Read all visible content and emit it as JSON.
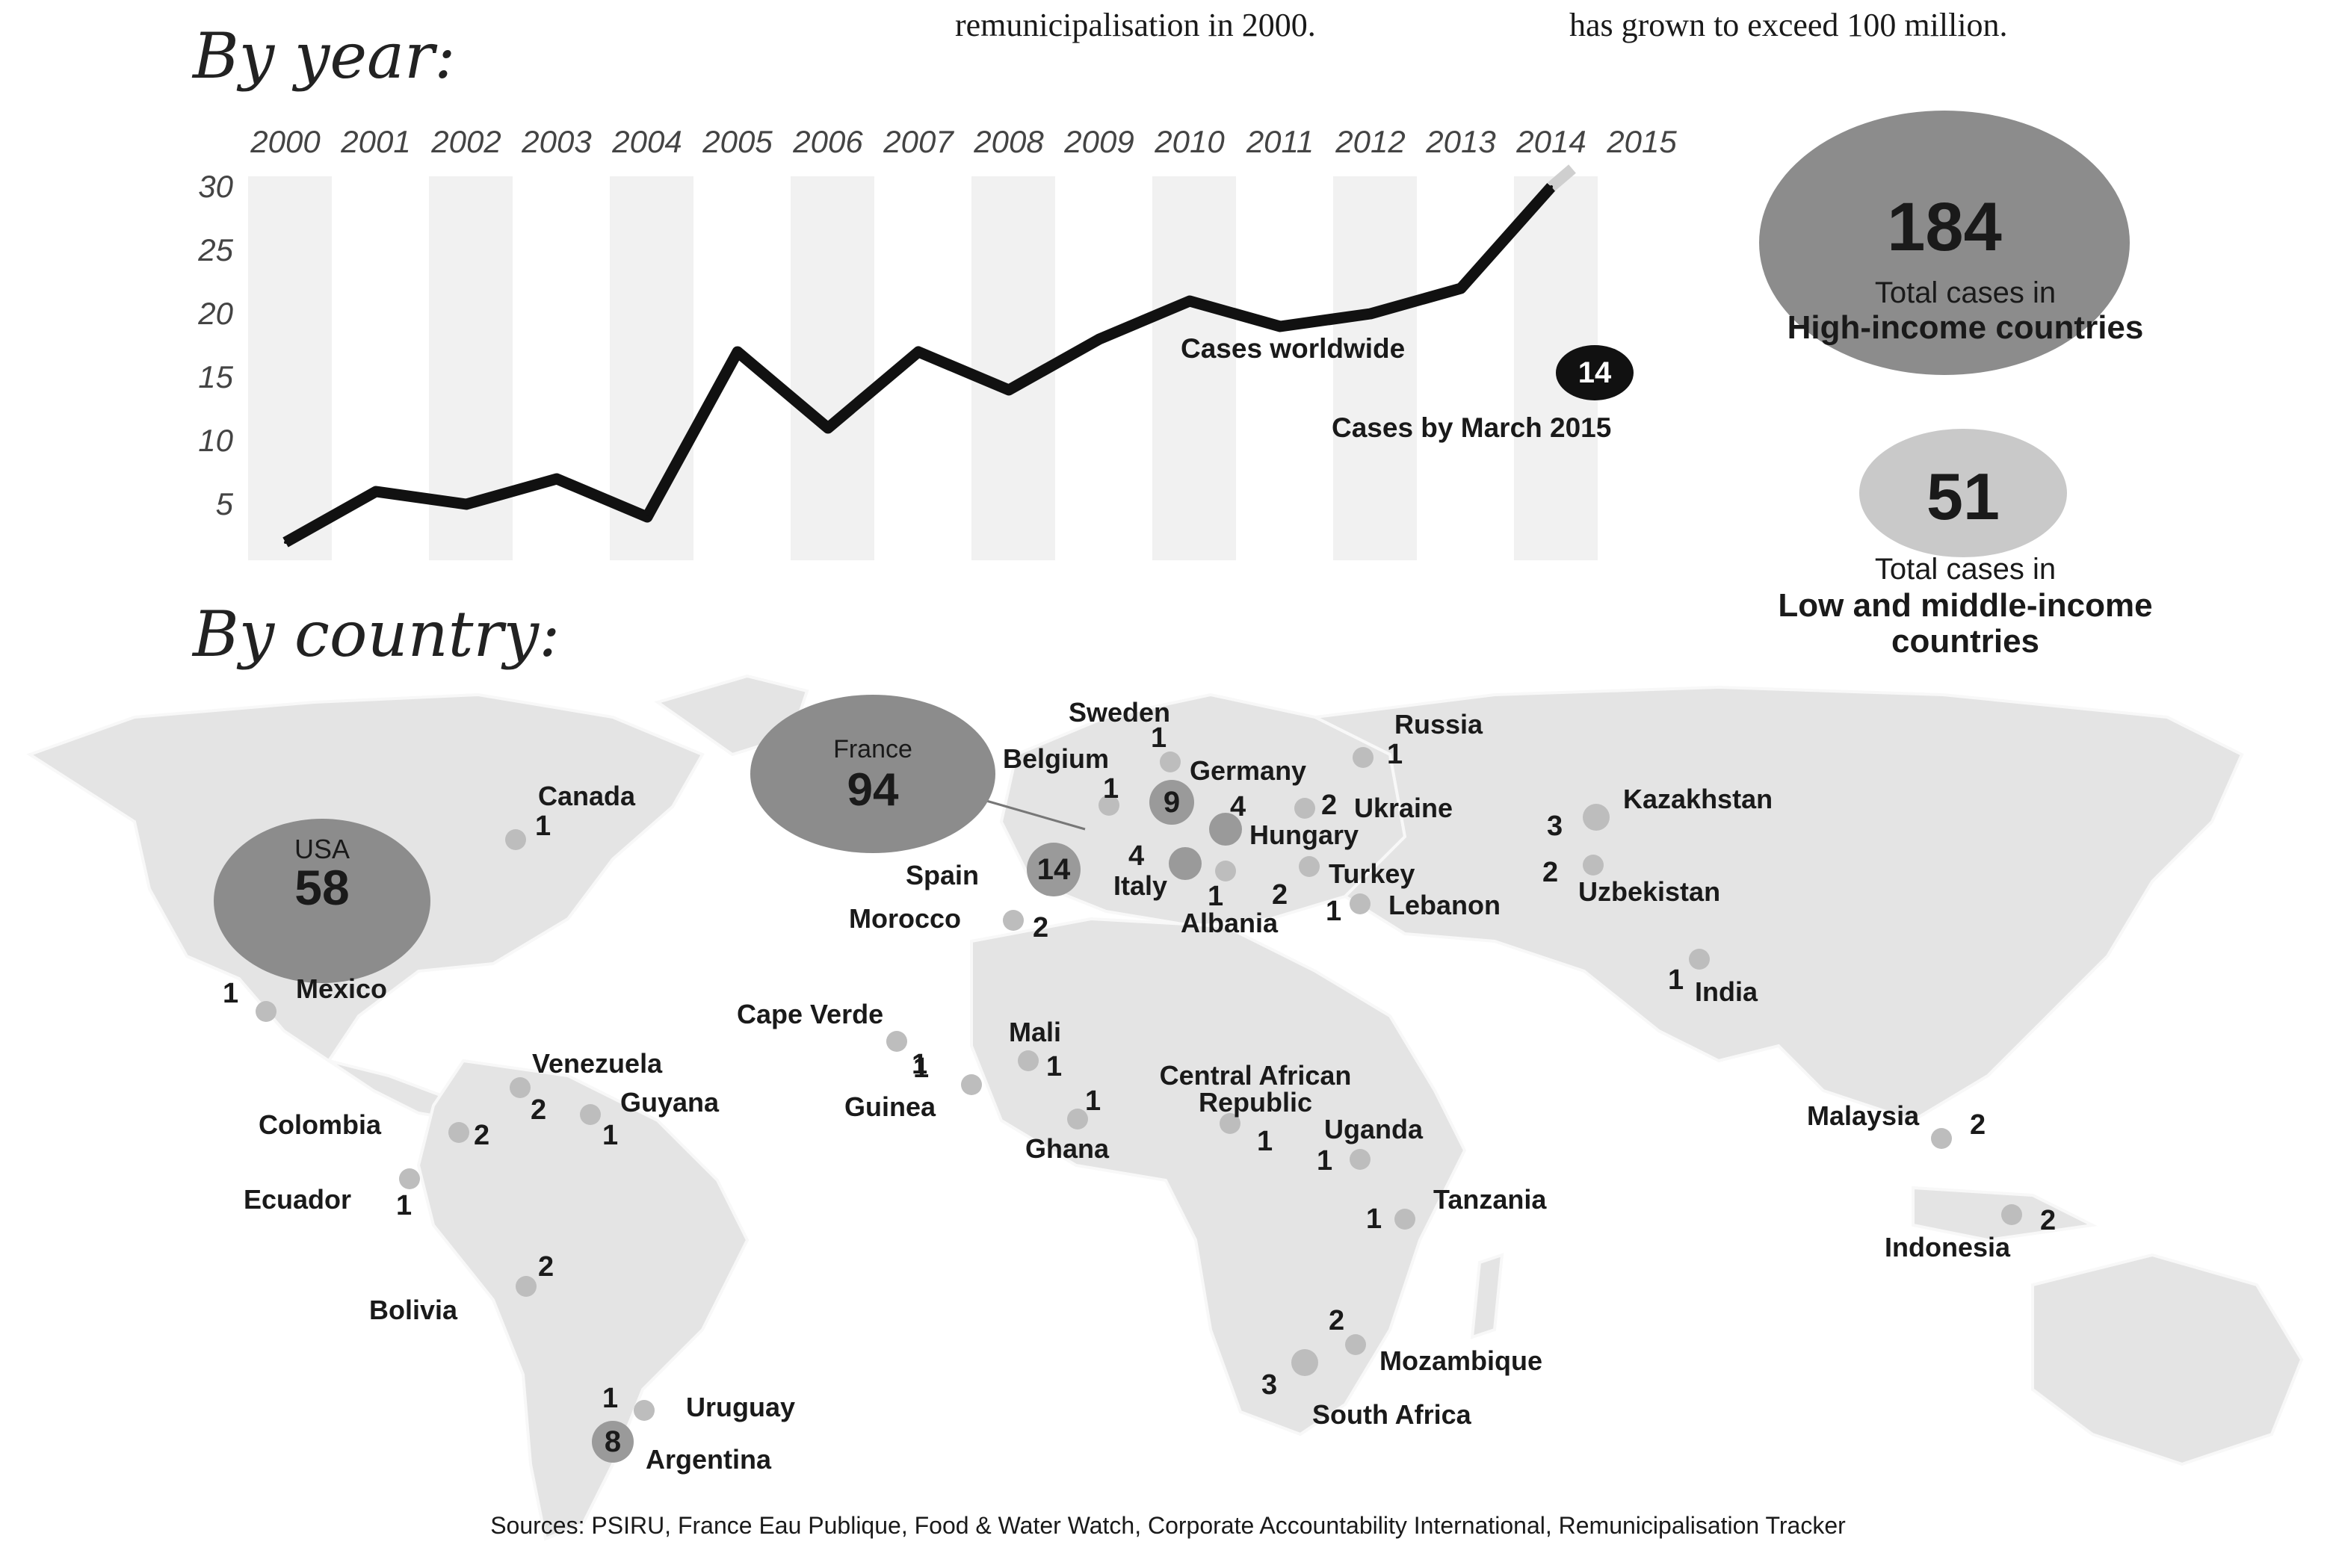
{
  "header": {
    "fragment_left": "remunicipalisation in 2000.",
    "fragment_right": "has grown to exceed 100 million."
  },
  "sections": {
    "by_year": "By year:",
    "by_country": "By country:"
  },
  "chart_data": {
    "type": "line",
    "x": [
      "2000",
      "2001",
      "2002",
      "2003",
      "2004",
      "2005",
      "2006",
      "2007",
      "2008",
      "2009",
      "2010",
      "2011",
      "2012",
      "2013",
      "2014",
      "2015"
    ],
    "series": [
      {
        "values": [
          2,
          6,
          5,
          7,
          4,
          17,
          11,
          17,
          14,
          18,
          21,
          19,
          20,
          22,
          30,
          null
        ]
      }
    ],
    "yticks": [
      "30",
      "25",
      "20",
      "15",
      "10",
      "5"
    ],
    "ylim": [
      0,
      30
    ],
    "series_label": "Cases worldwide",
    "partial_year": {
      "value": "14",
      "label": "Cases by March 2015"
    },
    "grid": "alternating vertical bands"
  },
  "totals": {
    "high_income": {
      "value": "184",
      "line1": "Total cases in",
      "line2": "High-income countries"
    },
    "low_middle": {
      "value": "51",
      "line1": "Total cases in",
      "line2": "Low and middle-income",
      "line3": "countries"
    }
  },
  "big_bubbles": {
    "usa": {
      "name": "USA",
      "value": "58"
    },
    "france": {
      "name": "France",
      "value": "94"
    }
  },
  "countries": [
    {
      "name": "Sweden",
      "value": "1"
    },
    {
      "name": "Russia",
      "value": "1"
    },
    {
      "name": "Belgium",
      "value": "1"
    },
    {
      "name": "Germany",
      "value": "9"
    },
    {
      "name": "Ukraine",
      "value": "2"
    },
    {
      "name": "Hungary",
      "value": "4"
    },
    {
      "name": "Kazakhstan",
      "value": "3"
    },
    {
      "name": "Spain",
      "value": "14"
    },
    {
      "name": "Italy",
      "value": "4"
    },
    {
      "name": "Turkey",
      "value": "2"
    },
    {
      "name": "Uzbekistan",
      "value": "2"
    },
    {
      "name": "Albania",
      "value": "1"
    },
    {
      "name": "Lebanon",
      "value": "1"
    },
    {
      "name": "Morocco",
      "value": "2"
    },
    {
      "name": "Canada",
      "value": "1"
    },
    {
      "name": "Mexico",
      "value": "1"
    },
    {
      "name": "India",
      "value": "1"
    },
    {
      "name": "Cape Verde",
      "value": "1"
    },
    {
      "name": "Mali",
      "value": "1"
    },
    {
      "name": "Guinea",
      "value": "1"
    },
    {
      "name": "Ghana",
      "value": "1"
    },
    {
      "name": "Central African Republic",
      "value": "1"
    },
    {
      "name": "Uganda",
      "value": "1"
    },
    {
      "name": "Tanzania",
      "value": "1"
    },
    {
      "name": "Venezuela",
      "value": "2"
    },
    {
      "name": "Guyana",
      "value": "1"
    },
    {
      "name": "Colombia",
      "value": "2"
    },
    {
      "name": "Ecuador",
      "value": "1"
    },
    {
      "name": "Malaysia",
      "value": "2"
    },
    {
      "name": "Indonesia",
      "value": "2"
    },
    {
      "name": "Bolivia",
      "value": "2"
    },
    {
      "name": "Mozambique",
      "value": "2"
    },
    {
      "name": "South Africa",
      "value": "3"
    },
    {
      "name": "Uruguay",
      "value": "1"
    },
    {
      "name": "Argentina",
      "value": "8"
    }
  ],
  "colors": {
    "line": "#111111",
    "band": "#f1f1f1",
    "bubble_high": "#8c8c8c",
    "bubble_low": "#c9c9c9",
    "land": "#e4e4e4",
    "dot": "#bdbdbd",
    "dot_dark": "#9a9a9a"
  },
  "footer": {
    "sources": "Sources: PSIRU, France Eau Publique, Food & Water Watch, Corporate Accountability International, Remunicipalisation Tracker"
  }
}
